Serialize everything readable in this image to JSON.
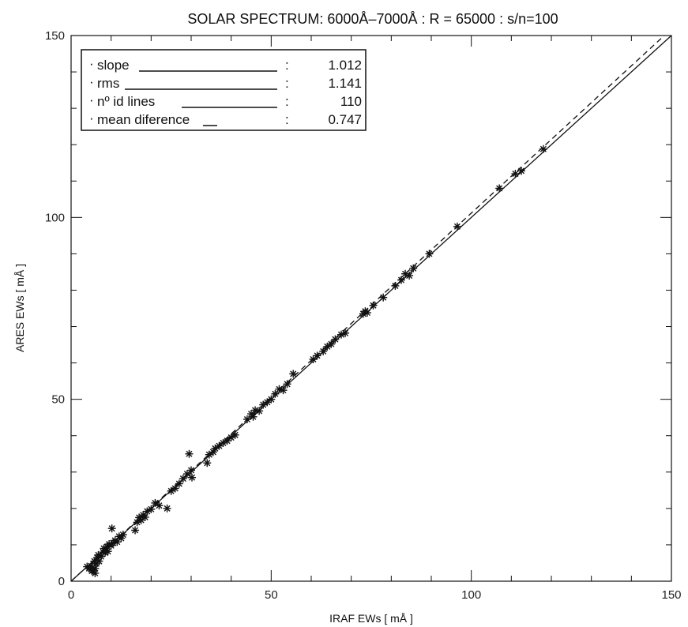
{
  "chart_data": {
    "type": "scatter",
    "title": "SOLAR SPECTRUM: 6000Å–7000Å : R = 65000   : s/n=100",
    "xlabel": "IRAF EWs [ mÅ ]",
    "ylabel": "ARES EWs [ mÅ ]",
    "xlim": [
      0,
      150
    ],
    "ylim": [
      0,
      150
    ],
    "xticks": [
      0,
      50,
      100,
      150
    ],
    "yticks": [
      0,
      50,
      100,
      150
    ],
    "tick_labels_x": [
      "0",
      "50",
      "100",
      "150"
    ],
    "tick_labels_y": [
      "0",
      "50",
      "100",
      "150"
    ],
    "grid": false,
    "legend": {
      "placement": "top-left",
      "entries": [
        {
          "label": "slope",
          "sep": ":",
          "value": "1.012",
          "line_style": "solid"
        },
        {
          "label": "rms",
          "sep": ":",
          "value": "1.141",
          "line_style": "solid"
        },
        {
          "label": "nº id lines",
          "sep": ":",
          "value": "110",
          "line_style": "solid"
        },
        {
          "label": "mean diference",
          "sep": ":",
          "value": "0.747",
          "line_style": "dashed"
        }
      ]
    },
    "lines": [
      {
        "style": "solid",
        "slope": 1.0,
        "intercept": 0.0
      },
      {
        "style": "dashed",
        "slope": 1.012,
        "intercept": 0.0
      }
    ],
    "marker": "asterisk",
    "points": [
      [
        4.0,
        4.0
      ],
      [
        4.5,
        3.5
      ],
      [
        5.0,
        4.2
      ],
      [
        5.2,
        2.8
      ],
      [
        5.5,
        3.0
      ],
      [
        5.8,
        5.5
      ],
      [
        6.0,
        2.2
      ],
      [
        6.0,
        3.5
      ],
      [
        6.3,
        4.8
      ],
      [
        6.5,
        6.5
      ],
      [
        6.8,
        7.2
      ],
      [
        7.0,
        5.5
      ],
      [
        7.5,
        6.8
      ],
      [
        8.0,
        8.0
      ],
      [
        8.2,
        9.0
      ],
      [
        8.5,
        7.8
      ],
      [
        9.0,
        9.5
      ],
      [
        9.2,
        8.2
      ],
      [
        9.5,
        10.2
      ],
      [
        10.0,
        9.8
      ],
      [
        10.2,
        14.5
      ],
      [
        10.5,
        10.5
      ],
      [
        11.0,
        11.2
      ],
      [
        11.5,
        10.8
      ],
      [
        12.0,
        12.3
      ],
      [
        12.5,
        11.8
      ],
      [
        13.0,
        12.8
      ],
      [
        16.0,
        14.0
      ],
      [
        16.5,
        16.2
      ],
      [
        17.0,
        17.5
      ],
      [
        17.5,
        16.8
      ],
      [
        18.0,
        18.2
      ],
      [
        18.5,
        17.6
      ],
      [
        19.0,
        19.2
      ],
      [
        20.0,
        19.8
      ],
      [
        21.0,
        21.5
      ],
      [
        22.0,
        20.8
      ],
      [
        24.0,
        20.0
      ],
      [
        25.0,
        24.8
      ],
      [
        26.0,
        25.5
      ],
      [
        27.0,
        26.8
      ],
      [
        28.0,
        28.2
      ],
      [
        29.0,
        29.5
      ],
      [
        29.5,
        35.0
      ],
      [
        30.0,
        30.5
      ],
      [
        30.2,
        28.5
      ],
      [
        34.0,
        32.5
      ],
      [
        34.5,
        34.8
      ],
      [
        35.5,
        35.5
      ],
      [
        36.0,
        36.5
      ],
      [
        37.0,
        37.2
      ],
      [
        38.0,
        38.0
      ],
      [
        39.0,
        38.6
      ],
      [
        40.0,
        39.5
      ],
      [
        41.0,
        40.2
      ],
      [
        44.0,
        44.5
      ],
      [
        45.0,
        46.0
      ],
      [
        45.5,
        45.2
      ],
      [
        46.0,
        47.0
      ],
      [
        47.0,
        46.8
      ],
      [
        48.0,
        48.5
      ],
      [
        49.0,
        49.2
      ],
      [
        50.0,
        50.0
      ],
      [
        51.0,
        51.5
      ],
      [
        52.0,
        52.8
      ],
      [
        53.0,
        52.5
      ],
      [
        54.0,
        54.2
      ],
      [
        55.5,
        57.0
      ],
      [
        60.5,
        61.0
      ],
      [
        61.5,
        62.0
      ],
      [
        63.0,
        63.2
      ],
      [
        64.0,
        64.5
      ],
      [
        65.0,
        65.2
      ],
      [
        66.0,
        66.5
      ],
      [
        67.5,
        67.8
      ],
      [
        68.5,
        68.2
      ],
      [
        73.0,
        73.5
      ],
      [
        73.5,
        74.2
      ],
      [
        74.0,
        73.8
      ],
      [
        75.5,
        75.8
      ],
      [
        78.0,
        78.0
      ],
      [
        81.0,
        81.2
      ],
      [
        82.5,
        82.8
      ],
      [
        83.5,
        84.5
      ],
      [
        84.5,
        84.0
      ],
      [
        85.5,
        86.0
      ],
      [
        89.5,
        90.0
      ],
      [
        96.5,
        97.5
      ],
      [
        107.0,
        108.0
      ],
      [
        111.0,
        112.0
      ],
      [
        112.5,
        112.8
      ],
      [
        118.0,
        118.8
      ]
    ]
  }
}
